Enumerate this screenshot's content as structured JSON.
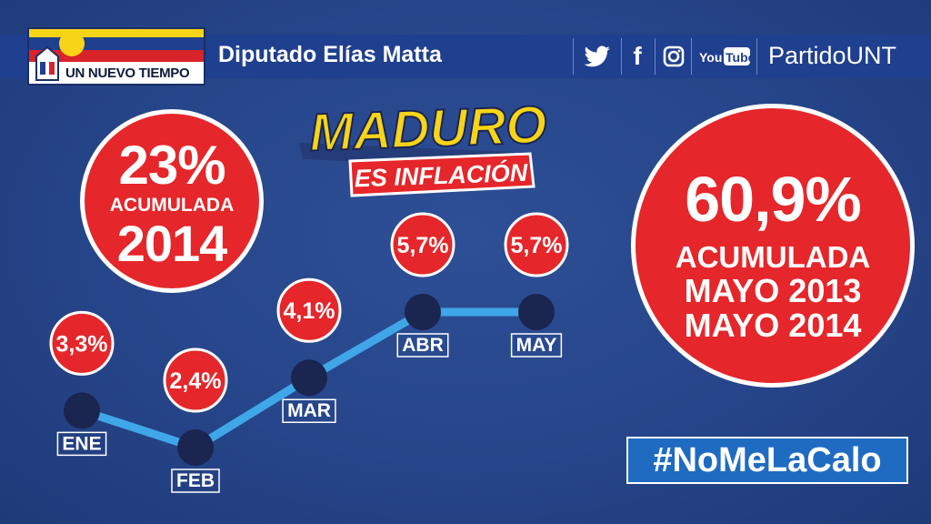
{
  "header": {
    "logo_text": "UN NUEVO TIEMPO",
    "deputy": "Diputado Elías Matta",
    "social_icons": [
      "twitter-icon",
      "facebook-icon",
      "instagram-icon",
      "youtube-icon"
    ],
    "youtube_label": "YouTube",
    "party": "PartidoUNT"
  },
  "maduro_logo": {
    "line1": "MADURO",
    "line2": "ES INFLACIÓN"
  },
  "circle_2014": {
    "value": "23%",
    "label": "ACUMULADA",
    "year": "2014"
  },
  "circle_total": {
    "value": "60,9%",
    "line1": "ACUMULADA",
    "line2": "MAYO 2013",
    "line3": "MAYO 2014"
  },
  "hashtag": "#NoMeLaCalo",
  "colors": {
    "background": "#26458a",
    "badge_red": "#e5262a",
    "line": "#3fa6e8",
    "node": "#1a2550",
    "hashtag_bg": "#1f6bc2",
    "yellow": "#f7d417"
  },
  "chart_data": {
    "type": "line",
    "categories": [
      "ENE",
      "FEB",
      "MAR",
      "ABR",
      "MAY"
    ],
    "values": [
      3.3,
      2.4,
      4.1,
      5.7,
      5.7
    ],
    "value_labels": [
      "3,3%",
      "2,4%",
      "4,1%",
      "5,7%",
      "5,7%"
    ],
    "unit": "%",
    "grid": false
  }
}
